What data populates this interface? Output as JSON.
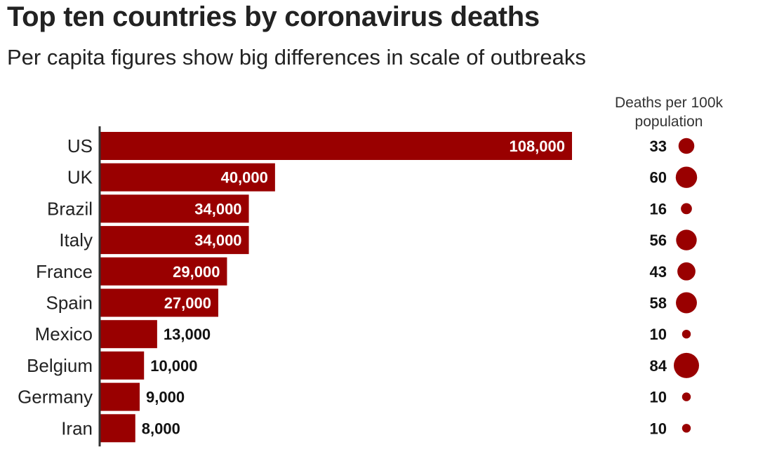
{
  "title": "Top ten countries by coronavirus deaths",
  "subtitle": "Per capita figures show big differences in scale of outbreaks",
  "per_capita_header": "Deaths per 100k population",
  "colors": {
    "bar": "#990000",
    "bubble": "#990000",
    "axis": "#333333"
  },
  "chart_data": {
    "type": "bar",
    "orientation": "horizontal",
    "categories": [
      "US",
      "UK",
      "Brazil",
      "Italy",
      "France",
      "Spain",
      "Mexico",
      "Belgium",
      "Germany",
      "Iran"
    ],
    "values": [
      108000,
      40000,
      34000,
      34000,
      29000,
      27000,
      13000,
      10000,
      9000,
      8000
    ],
    "value_labels": [
      "108,000",
      "40,000",
      "34,000",
      "34,000",
      "29,000",
      "27,000",
      "13,000",
      "10,000",
      "9,000",
      "8,000"
    ],
    "per_capita": {
      "name": "Deaths per 100k population",
      "values": [
        33,
        60,
        16,
        56,
        43,
        58,
        10,
        84,
        10,
        10
      ]
    },
    "xlim": [
      0,
      108000
    ],
    "grid": false,
    "legend": "none"
  }
}
